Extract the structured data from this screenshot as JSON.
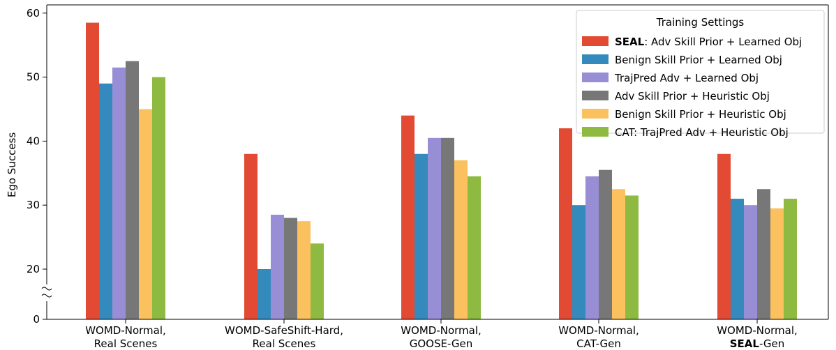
{
  "chart_data": {
    "type": "bar",
    "ylabel": "Ego Success",
    "ylim": [
      0,
      62
    ],
    "y_axis_break": "between 0 and 20 (broken axis, marked with ≈)",
    "yticks": [
      "0",
      "20",
      "30",
      "40",
      "50",
      "60"
    ],
    "categories": [
      {
        "line1": "WOMD-Normal,",
        "line2": "Real Scenes",
        "line2_bold": ""
      },
      {
        "line1": "WOMD-SafeShift-Hard,",
        "line2": "Real Scenes",
        "line2_bold": ""
      },
      {
        "line1": "WOMD-Normal,",
        "line2": "GOOSE-Gen",
        "line2_bold": ""
      },
      {
        "line1": "WOMD-Normal,",
        "line2": "CAT-Gen",
        "line2_bold": ""
      },
      {
        "line1": "WOMD-Normal,",
        "line2": "-Gen",
        "line2_bold": "SEAL"
      }
    ],
    "legend": {
      "title": "Training Settings",
      "placement": "top-right"
    },
    "series": [
      {
        "name_bold": "SEAL",
        "name": ": Adv Skill Prior + Learned Obj",
        "color": "#e24a33",
        "values": [
          58.5,
          38,
          44,
          42,
          38
        ]
      },
      {
        "name_bold": "",
        "name": "Benign Skill Prior + Learned Obj",
        "color": "#348abd",
        "values": [
          49,
          20,
          38,
          30,
          31
        ]
      },
      {
        "name_bold": "",
        "name": "TrajPred Adv + Learned Obj",
        "color": "#988ed5",
        "values": [
          51.5,
          28.5,
          40.5,
          34.5,
          30
        ]
      },
      {
        "name_bold": "",
        "name": "Adv Skill Prior + Heuristic Obj",
        "color": "#777777",
        "values": [
          52.5,
          28,
          40.5,
          35.5,
          32.5
        ]
      },
      {
        "name_bold": "",
        "name": "Benign Skill Prior + Heuristic Obj",
        "color": "#fbc15e",
        "values": [
          45,
          27.5,
          37,
          32.5,
          29.5
        ]
      },
      {
        "name_bold": "",
        "name": "CAT: TrajPred Adv + Heuristic Obj",
        "color": "#8eba42",
        "values": [
          50,
          24,
          34.5,
          31.5,
          31
        ]
      }
    ]
  }
}
